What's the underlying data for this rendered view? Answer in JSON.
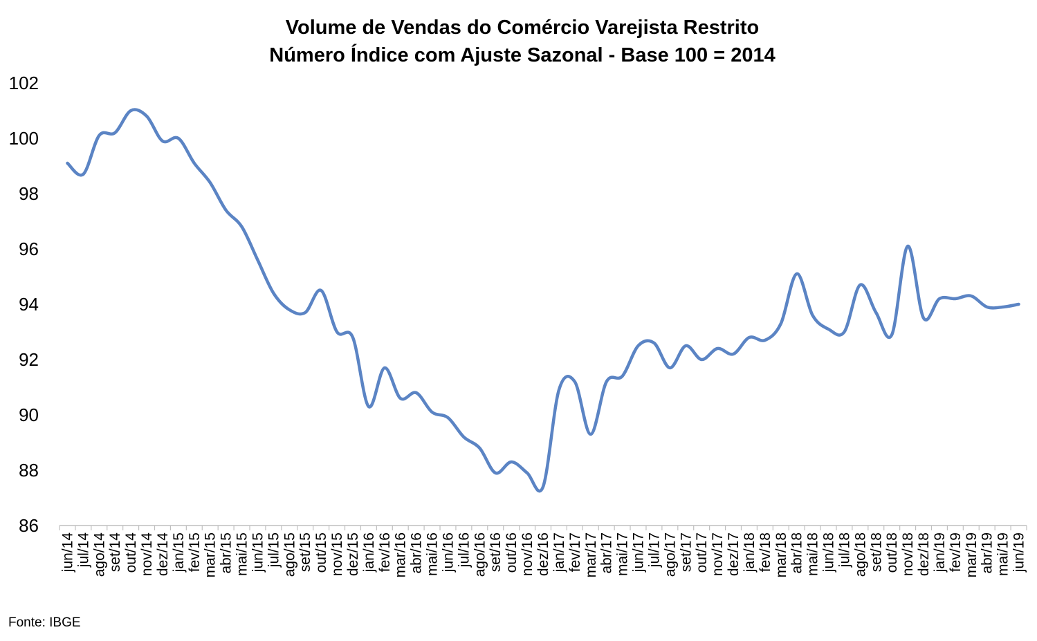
{
  "chart_data": {
    "type": "line",
    "title_line1": "Volume de Vendas do Comércio Varejista Restrito",
    "title_line2": "Número Índice com Ajuste Sazonal - Base 100 = 2014",
    "source": "Fonte: IBGE",
    "ylim": [
      86,
      102
    ],
    "yticks": [
      86,
      88,
      90,
      92,
      94,
      96,
      98,
      100,
      102
    ],
    "grid": false,
    "legend": "none",
    "line_color": "#5B84C4",
    "categories": [
      "jun/14",
      "jul/14",
      "ago/14",
      "set/14",
      "out/14",
      "nov/14",
      "dez/14",
      "jan/15",
      "fev/15",
      "mar/15",
      "abr/15",
      "mai/15",
      "jun/15",
      "jul/15",
      "ago/15",
      "set/15",
      "out/15",
      "nov/15",
      "dez/15",
      "jan/16",
      "fev/16",
      "mar/16",
      "abr/16",
      "mai/16",
      "jun/16",
      "jul/16",
      "ago/16",
      "set/16",
      "out/16",
      "nov/16",
      "dez/16",
      "jan/17",
      "fev/17",
      "mar/17",
      "abr/17",
      "mai/17",
      "jun/17",
      "jul/17",
      "ago/17",
      "set/17",
      "out/17",
      "nov/17",
      "dez/17",
      "jan/18",
      "fev/18",
      "mar/18",
      "abr/18",
      "mai/18",
      "jun/18",
      "jul/18",
      "ago/18",
      "set/18",
      "out/18",
      "nov/18",
      "dez/18",
      "jan/19",
      "fev/19",
      "mar/19",
      "abr/19",
      "mai/19",
      "jun/19"
    ],
    "series": [
      {
        "values": [
          99.1,
          98.7,
          100.1,
          100.2,
          101.0,
          100.8,
          99.9,
          100.0,
          99.1,
          98.4,
          97.4,
          96.8,
          95.6,
          94.4,
          93.8,
          93.7,
          94.5,
          93.0,
          92.8,
          90.3,
          91.7,
          90.6,
          90.8,
          90.1,
          89.9,
          89.2,
          88.8,
          87.9,
          88.3,
          87.9,
          87.4,
          90.9,
          91.2,
          89.3,
          91.2,
          91.4,
          92.5,
          92.6,
          91.7,
          92.5,
          92.0,
          92.4,
          92.2,
          92.8,
          92.7,
          93.3,
          95.1,
          93.6,
          93.1,
          93.0,
          94.7,
          93.7,
          92.9,
          96.1,
          93.5,
          94.2,
          94.2,
          94.3,
          93.9,
          93.9,
          94.0
        ]
      }
    ]
  }
}
